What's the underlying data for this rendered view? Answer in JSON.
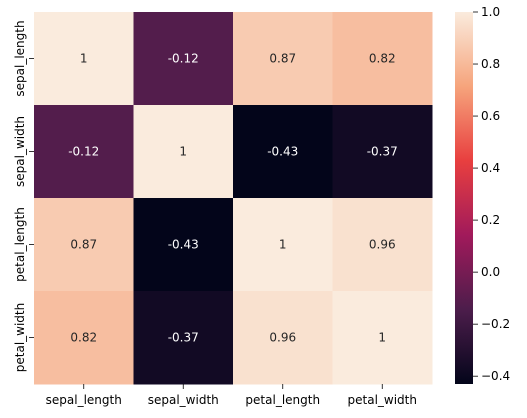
{
  "chart_data": {
    "type": "heatmap",
    "title": "",
    "xlabel": "",
    "ylabel": "",
    "x_labels": [
      "sepal_length",
      "sepal_width",
      "petal_length",
      "petal_width"
    ],
    "y_labels": [
      "sepal_length",
      "sepal_width",
      "petal_length",
      "petal_width"
    ],
    "values": [
      [
        1,
        -0.12,
        0.87,
        0.82
      ],
      [
        -0.12,
        1,
        -0.43,
        -0.37
      ],
      [
        0.87,
        -0.43,
        1,
        0.96
      ],
      [
        0.82,
        -0.37,
        0.96,
        1
      ]
    ],
    "annotations": [
      [
        "1",
        "-0.12",
        "0.87",
        "0.82"
      ],
      [
        "-0.12",
        "1",
        "-0.43",
        "-0.37"
      ],
      [
        "0.87",
        "-0.43",
        "1",
        "0.96"
      ],
      [
        "0.82",
        "-0.37",
        "0.96",
        "1"
      ]
    ],
    "colorbar": {
      "range": [
        -0.43,
        1.0
      ],
      "ticks": [
        -0.4,
        -0.2,
        0.0,
        0.2,
        0.4,
        0.6,
        0.8,
        1.0
      ],
      "tick_labels": [
        "−0.4",
        "−0.2",
        "0.0",
        "0.2",
        "0.4",
        "0.6",
        "0.8",
        "1.0"
      ]
    },
    "colormap": [
      "#03051a",
      "#4c1d4b",
      "#a11a5b",
      "#e83f3f",
      "#f6a47c",
      "#faebdd"
    ]
  }
}
